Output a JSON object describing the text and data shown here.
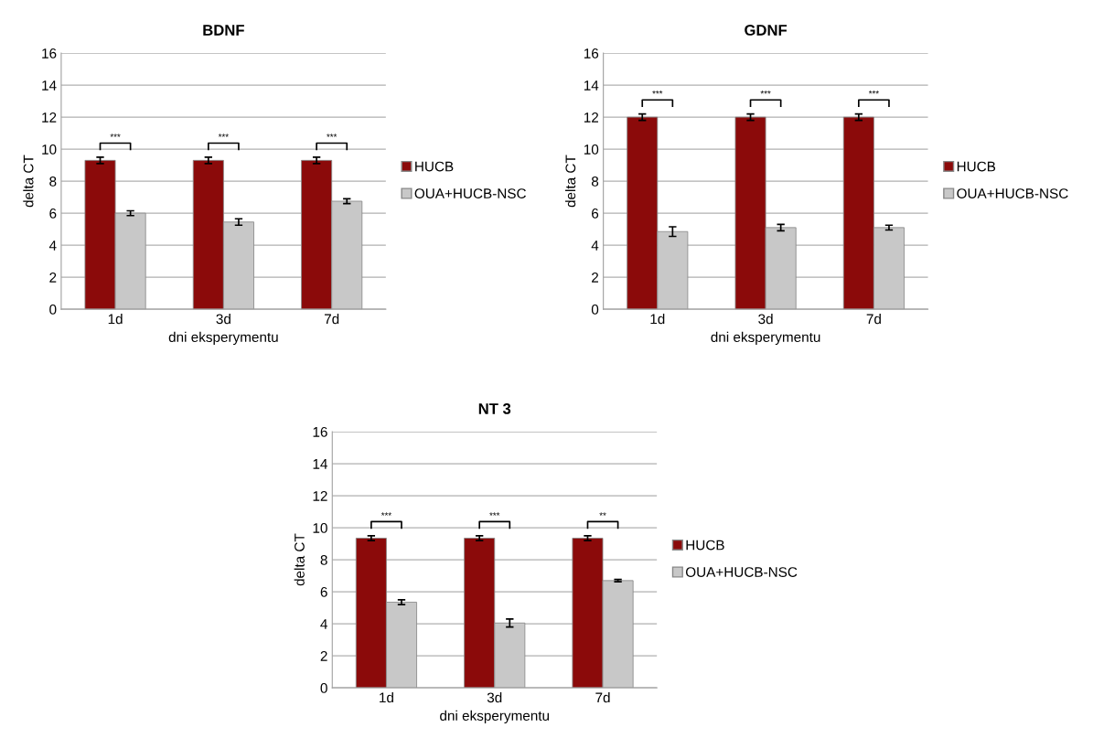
{
  "chart_data": [
    {
      "type": "bar",
      "title": "BDNF",
      "xlabel": "dni eksperymentu",
      "ylabel": "delta CT",
      "categories": [
        "1d",
        "3d",
        "7d"
      ],
      "series": [
        {
          "name": "HUCB",
          "color": "#8b0a0a",
          "values": [
            9.3,
            9.3,
            9.3
          ],
          "errors": [
            0.2,
            0.2,
            0.2
          ]
        },
        {
          "name": "OUA+HUCB-NSC",
          "color": "#c8c8c8",
          "values": [
            6.0,
            5.45,
            6.75
          ],
          "errors": [
            0.15,
            0.2,
            0.15
          ]
        }
      ],
      "annotations": [
        "***",
        "***",
        "***"
      ],
      "ylim": [
        0,
        16
      ],
      "yticks": [
        0,
        2,
        4,
        6,
        8,
        10,
        12,
        14,
        16
      ],
      "grid": "y",
      "legend": "right"
    },
    {
      "type": "bar",
      "title": "GDNF",
      "xlabel": "dni eksperymentu",
      "ylabel": "delta CT",
      "categories": [
        "1d",
        "3d",
        "7d"
      ],
      "series": [
        {
          "name": "HUCB",
          "color": "#8b0a0a",
          "values": [
            12.0,
            12.0,
            12.0
          ],
          "errors": [
            0.2,
            0.2,
            0.2
          ]
        },
        {
          "name": "OUA+HUCB-NSC",
          "color": "#c8c8c8",
          "values": [
            4.85,
            5.1,
            5.1
          ],
          "errors": [
            0.3,
            0.2,
            0.15
          ]
        }
      ],
      "annotations": [
        "***",
        "***",
        "***"
      ],
      "ylim": [
        0,
        16
      ],
      "yticks": [
        0,
        2,
        4,
        6,
        8,
        10,
        12,
        14,
        16
      ],
      "grid": "y",
      "legend": "right"
    },
    {
      "type": "bar",
      "title": "NT 3",
      "xlabel": "dni eksperymentu",
      "ylabel": "delta CT",
      "categories": [
        "1d",
        "3d",
        "7d"
      ],
      "series": [
        {
          "name": "HUCB",
          "color": "#8b0a0a",
          "values": [
            9.35,
            9.35,
            9.35
          ],
          "errors": [
            0.15,
            0.15,
            0.15
          ]
        },
        {
          "name": "OUA+HUCB-NSC",
          "color": "#c8c8c8",
          "values": [
            5.35,
            4.05,
            6.7
          ],
          "errors": [
            0.15,
            0.25,
            0.07
          ]
        }
      ],
      "annotations": [
        "***",
        "***",
        "**"
      ],
      "ylim": [
        0,
        16
      ],
      "yticks": [
        0,
        2,
        4,
        6,
        8,
        10,
        12,
        14,
        16
      ],
      "grid": "y",
      "legend": "right"
    }
  ]
}
